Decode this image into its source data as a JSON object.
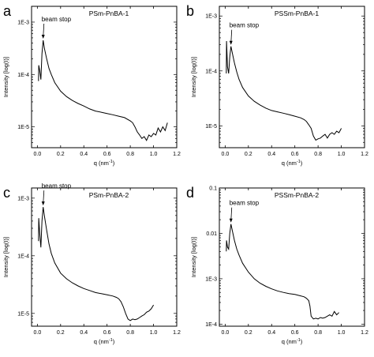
{
  "chart_data": [
    {
      "type": "line",
      "panel": "a",
      "title": "PSm-PnBA-1",
      "xlabel": "q (nm",
      "xlabel_sup": "-1",
      "xlabel_end": ")",
      "ylabel": "Intensity [log(I)]",
      "yscale": "log",
      "xlim": [
        -0.05,
        1.2
      ],
      "ylim": [
        4e-06,
        0.002
      ],
      "xticks": [
        0.0,
        0.2,
        0.4,
        0.6,
        0.8,
        1.0,
        1.2
      ],
      "xtick_labels": [
        "0.0",
        "0.2",
        "0.4",
        "0.6",
        "0.8",
        "1.0",
        "1.2"
      ],
      "yticks": [
        1e-05,
        0.0001,
        0.001
      ],
      "ytick_labels": [
        "1E-5",
        "1E-4",
        "1E-3"
      ],
      "annotation": {
        "text": "beam stop",
        "x": 0.05,
        "y": 0.00045
      },
      "series": [
        {
          "x": [
            0.01,
            0.012,
            0.02,
            0.03,
            0.04,
            0.05,
            0.06,
            0.08,
            0.1,
            0.12,
            0.15,
            0.2,
            0.25,
            0.3,
            0.35,
            0.4,
            0.45,
            0.5,
            0.55,
            0.6,
            0.65,
            0.7,
            0.75,
            0.8,
            0.82,
            0.84,
            0.86,
            0.88,
            0.9,
            0.92,
            0.94,
            0.96,
            0.98,
            1.0,
            1.02,
            1.04,
            1.06,
            1.08,
            1.1,
            1.12
          ],
          "y": [
            7.5e-05,
            0.00015,
            0.00012,
            8e-05,
            0.00025,
            0.00045,
            0.00032,
            0.0002,
            0.00013,
            0.0001,
            7e-05,
            4.8e-05,
            3.8e-05,
            3.2e-05,
            2.8e-05,
            2.5e-05,
            2.2e-05,
            2e-05,
            1.9e-05,
            1.8e-05,
            1.7e-05,
            1.6e-05,
            1.5e-05,
            1.3e-05,
            1.2e-05,
            1e-05,
            8e-06,
            7e-06,
            6e-06,
            6.5e-06,
            5.5e-06,
            7e-06,
            6.5e-06,
            7.5e-06,
            7e-06,
            9.5e-06,
            8e-06,
            1e-05,
            8.5e-06,
            1.2e-05
          ]
        }
      ]
    },
    {
      "type": "line",
      "panel": "b",
      "title": "PSSm-PnBA-1",
      "xlabel": "q (nm",
      "xlabel_sup": "-1",
      "xlabel_end": ")",
      "ylabel": "Intensity [log(I)]",
      "yscale": "log",
      "xlim": [
        -0.05,
        1.2
      ],
      "ylim": [
        4e-06,
        0.0015
      ],
      "xticks": [
        0.0,
        0.2,
        0.4,
        0.6,
        0.8,
        1.0,
        1.2
      ],
      "xtick_labels": [
        "0.0",
        "0.2",
        "0.4",
        "0.6",
        "0.8",
        "1.0",
        "1.2"
      ],
      "yticks": [
        1e-05,
        0.0001,
        0.001
      ],
      "ytick_labels": [
        "1E-5",
        "1E-4",
        "1E-3"
      ],
      "annotation": {
        "text": "beam stop",
        "x": 0.05,
        "y": 0.00028
      },
      "series": [
        {
          "x": [
            0.01,
            0.012,
            0.02,
            0.03,
            0.04,
            0.05,
            0.06,
            0.08,
            0.1,
            0.12,
            0.15,
            0.2,
            0.25,
            0.3,
            0.35,
            0.4,
            0.45,
            0.5,
            0.55,
            0.6,
            0.65,
            0.68,
            0.7,
            0.72,
            0.74,
            0.76,
            0.78,
            0.8,
            0.82,
            0.84,
            0.86,
            0.88,
            0.9,
            0.92,
            0.94,
            0.96,
            0.98,
            1.0
          ],
          "y": [
            9e-05,
            0.00035,
            0.00012,
            9e-05,
            0.00018,
            0.00028,
            0.00022,
            0.00014,
            9.5e-05,
            7e-05,
            5e-05,
            3.5e-05,
            2.8e-05,
            2.4e-05,
            2.1e-05,
            1.9e-05,
            1.8e-05,
            1.7e-05,
            1.6e-05,
            1.5e-05,
            1.4e-05,
            1.3e-05,
            1.2e-05,
            1.05e-05,
            9e-06,
            6.5e-06,
            5.5e-06,
            5.8e-06,
            6e-06,
            6.5e-06,
            7e-06,
            6e-06,
            7e-06,
            7.5e-06,
            7e-06,
            8e-06,
            7.5e-06,
            9e-06
          ]
        }
      ]
    },
    {
      "type": "line",
      "panel": "c",
      "title": "PSm-PnBA-2",
      "xlabel": "q (nm",
      "xlabel_sup": "-1",
      "xlabel_end": ")",
      "ylabel": "Intensity [log(I)]",
      "yscale": "log",
      "xlim": [
        -0.05,
        1.2
      ],
      "ylim": [
        6e-06,
        0.0015
      ],
      "xticks": [
        0.0,
        0.2,
        0.4,
        0.6,
        0.8,
        1.0,
        1.2
      ],
      "xtick_labels": [
        "0.0",
        "0.2",
        "0.4",
        "0.6",
        "0.8",
        "1.0",
        "1.2"
      ],
      "yticks": [
        1e-05,
        0.0001,
        0.001
      ],
      "ytick_labels": [
        "1E-5",
        "1E-4",
        "1E-3"
      ],
      "annotation": {
        "text": "beam stop",
        "x": 0.05,
        "y": 0.0007
      },
      "series": [
        {
          "x": [
            0.01,
            0.012,
            0.02,
            0.03,
            0.04,
            0.05,
            0.06,
            0.08,
            0.1,
            0.12,
            0.15,
            0.2,
            0.25,
            0.3,
            0.35,
            0.4,
            0.45,
            0.5,
            0.55,
            0.6,
            0.65,
            0.68,
            0.7,
            0.72,
            0.74,
            0.76,
            0.78,
            0.8,
            0.82,
            0.84,
            0.86,
            0.88,
            0.9,
            0.92,
            0.94,
            0.96,
            0.98,
            1.0
          ],
          "y": [
            0.00018,
            0.00045,
            0.00025,
            0.00014,
            0.0004,
            0.0007,
            0.0005,
            0.00028,
            0.00016,
            0.00011,
            7.5e-05,
            5e-05,
            4e-05,
            3.4e-05,
            3e-05,
            2.7e-05,
            2.5e-05,
            2.3e-05,
            2.2e-05,
            2.1e-05,
            2e-05,
            1.9e-05,
            1.8e-05,
            1.6e-05,
            1.3e-05,
            1e-05,
            8e-06,
            7.5e-06,
            8e-06,
            7.8e-06,
            8e-06,
            8.5e-06,
            9e-06,
            9.5e-06,
            1.05e-05,
            1.1e-05,
            1.2e-05,
            1.4e-05
          ]
        }
      ]
    },
    {
      "type": "line",
      "panel": "d",
      "title": "PSSm-PnBA-2",
      "xlabel": "q (nm",
      "xlabel_sup": "-1",
      "xlabel_end": ")",
      "ylabel": "Intensity [log(I)]",
      "yscale": "log",
      "xlim": [
        -0.05,
        1.2
      ],
      "ylim": [
        9e-05,
        0.1
      ],
      "xticks": [
        0.0,
        0.2,
        0.4,
        0.6,
        0.8,
        1.0,
        1.2
      ],
      "xtick_labels": [
        "0.0",
        "0.2",
        "0.4",
        "0.6",
        "0.8",
        "1.0",
        "1.2"
      ],
      "yticks": [
        0.0001,
        0.001,
        0.01,
        0.1
      ],
      "ytick_labels": [
        "1E-4",
        "1E-3",
        "0.01",
        "0.1"
      ],
      "annotation": {
        "text": "beam stop",
        "x": 0.05,
        "y": 0.016
      },
      "series": [
        {
          "x": [
            0.01,
            0.012,
            0.02,
            0.03,
            0.04,
            0.05,
            0.06,
            0.08,
            0.1,
            0.12,
            0.15,
            0.2,
            0.25,
            0.3,
            0.35,
            0.4,
            0.45,
            0.5,
            0.55,
            0.6,
            0.65,
            0.68,
            0.7,
            0.72,
            0.73,
            0.74,
            0.76,
            0.78,
            0.8,
            0.82,
            0.84,
            0.86,
            0.88,
            0.9,
            0.92,
            0.94,
            0.96,
            0.98
          ],
          "y": [
            0.004,
            0.007,
            0.005,
            0.0045,
            0.01,
            0.016,
            0.012,
            0.007,
            0.0045,
            0.0033,
            0.0022,
            0.0014,
            0.001,
            0.0008,
            0.00068,
            0.0006,
            0.00054,
            0.0005,
            0.00047,
            0.00045,
            0.00042,
            0.0004,
            0.00037,
            0.00033,
            0.00025,
            0.00015,
            0.00013,
            0.000135,
            0.00013,
            0.00014,
            0.000135,
            0.00014,
            0.00015,
            0.00016,
            0.00015,
            0.00019,
            0.00016,
            0.00018
          ]
        }
      ]
    }
  ]
}
